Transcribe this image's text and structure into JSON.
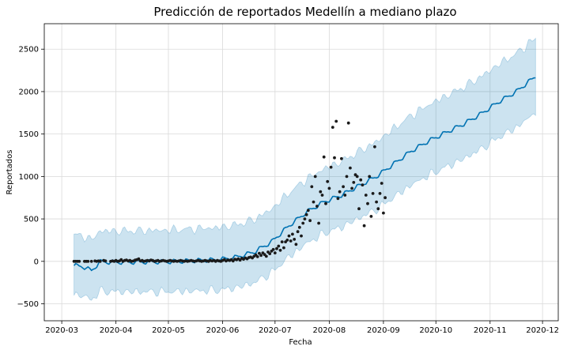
{
  "chart_data": {
    "type": "line",
    "title": "Predicción de reportados Medellín a mediano plazo",
    "xlabel": "Fecha",
    "ylabel": "Reportados",
    "grid": true,
    "legend": "none",
    "x_ticks": [
      "2020-03",
      "2020-04",
      "2020-05",
      "2020-06",
      "2020-07",
      "2020-08",
      "2020-09",
      "2020-10",
      "2020-11",
      "2020-12"
    ],
    "x_tick_days": [
      0,
      31,
      61,
      92,
      122,
      153,
      184,
      214,
      245,
      275
    ],
    "xlim_days": [
      -10,
      284
    ],
    "y_ticks": [
      -500,
      0,
      500,
      1000,
      1500,
      2000,
      2500
    ],
    "ylim": [
      -700,
      2800
    ],
    "colors": {
      "forecast": "#0072b2",
      "band": "#0072b2",
      "observed": "#1a1a1a",
      "grid": "#d9d9d9"
    },
    "forecast_start_day": 7,
    "forecast_end_day": 271,
    "forecast_anchors": [
      [
        7,
        -50
      ],
      [
        12,
        -60
      ],
      [
        17,
        -110
      ],
      [
        22,
        -5
      ],
      [
        30,
        -10
      ],
      [
        60,
        -5
      ],
      [
        90,
        20
      ],
      [
        100,
        50
      ],
      [
        110,
        110
      ],
      [
        120,
        230
      ],
      [
        130,
        420
      ],
      [
        140,
        580
      ],
      [
        150,
        700
      ],
      [
        160,
        780
      ],
      [
        170,
        890
      ],
      [
        180,
        1000
      ],
      [
        190,
        1150
      ],
      [
        200,
        1300
      ],
      [
        210,
        1420
      ],
      [
        220,
        1520
      ],
      [
        230,
        1620
      ],
      [
        240,
        1740
      ],
      [
        250,
        1880
      ],
      [
        260,
        2000
      ],
      [
        271,
        2180
      ]
    ],
    "band_half_anchors": [
      [
        7,
        360
      ],
      [
        150,
        390
      ],
      [
        200,
        420
      ],
      [
        271,
        450
      ]
    ],
    "observed": [
      [
        7,
        0
      ],
      [
        8,
        0
      ],
      [
        9,
        0
      ],
      [
        10,
        0
      ],
      [
        13,
        0
      ],
      [
        14,
        0
      ],
      [
        15,
        0
      ],
      [
        17,
        0
      ],
      [
        19,
        5
      ],
      [
        20,
        0
      ],
      [
        21,
        5
      ],
      [
        22,
        0
      ],
      [
        24,
        10
      ],
      [
        25,
        5
      ],
      [
        28,
        0
      ],
      [
        29,
        5
      ],
      [
        30,
        0
      ],
      [
        31,
        10
      ],
      [
        32,
        0
      ],
      [
        33,
        5
      ],
      [
        34,
        20
      ],
      [
        35,
        0
      ],
      [
        36,
        10
      ],
      [
        37,
        15
      ],
      [
        38,
        5
      ],
      [
        39,
        10
      ],
      [
        40,
        0
      ],
      [
        41,
        5
      ],
      [
        42,
        15
      ],
      [
        43,
        20
      ],
      [
        44,
        30
      ],
      [
        45,
        5
      ],
      [
        46,
        10
      ],
      [
        47,
        0
      ],
      [
        48,
        5
      ],
      [
        49,
        10
      ],
      [
        50,
        5
      ],
      [
        51,
        15
      ],
      [
        52,
        10
      ],
      [
        53,
        0
      ],
      [
        54,
        5
      ],
      [
        55,
        10
      ],
      [
        56,
        0
      ],
      [
        57,
        5
      ],
      [
        58,
        10
      ],
      [
        59,
        5
      ],
      [
        60,
        0
      ],
      [
        61,
        5
      ],
      [
        62,
        10
      ],
      [
        63,
        5
      ],
      [
        64,
        0
      ],
      [
        65,
        5
      ],
      [
        66,
        0
      ],
      [
        67,
        5
      ],
      [
        68,
        10
      ],
      [
        69,
        5
      ],
      [
        70,
        0
      ],
      [
        71,
        5
      ],
      [
        72,
        0
      ],
      [
        73,
        5
      ],
      [
        74,
        10
      ],
      [
        75,
        5
      ],
      [
        76,
        0
      ],
      [
        77,
        5
      ],
      [
        78,
        10
      ],
      [
        79,
        5
      ],
      [
        80,
        0
      ],
      [
        81,
        5
      ],
      [
        82,
        10
      ],
      [
        83,
        5
      ],
      [
        84,
        0
      ],
      [
        85,
        10
      ],
      [
        86,
        5
      ],
      [
        87,
        10
      ],
      [
        88,
        0
      ],
      [
        89,
        10
      ],
      [
        90,
        5
      ],
      [
        91,
        0
      ],
      [
        92,
        10
      ],
      [
        93,
        20
      ],
      [
        94,
        5
      ],
      [
        95,
        15
      ],
      [
        96,
        10
      ],
      [
        97,
        20
      ],
      [
        98,
        5
      ],
      [
        99,
        25
      ],
      [
        100,
        20
      ],
      [
        101,
        30
      ],
      [
        102,
        15
      ],
      [
        103,
        35
      ],
      [
        104,
        25
      ],
      [
        105,
        40
      ],
      [
        106,
        30
      ],
      [
        107,
        45
      ],
      [
        108,
        50
      ],
      [
        109,
        40
      ],
      [
        110,
        60
      ],
      [
        111,
        75
      ],
      [
        112,
        55
      ],
      [
        113,
        95
      ],
      [
        114,
        70
      ],
      [
        115,
        100
      ],
      [
        116,
        80
      ],
      [
        117,
        60
      ],
      [
        118,
        110
      ],
      [
        119,
        90
      ],
      [
        120,
        120
      ],
      [
        121,
        140
      ],
      [
        122,
        100
      ],
      [
        123,
        150
      ],
      [
        124,
        180
      ],
      [
        125,
        130
      ],
      [
        126,
        230
      ],
      [
        127,
        160
      ],
      [
        128,
        230
      ],
      [
        129,
        250
      ],
      [
        130,
        300
      ],
      [
        131,
        240
      ],
      [
        132,
        320
      ],
      [
        133,
        260
      ],
      [
        134,
        200
      ],
      [
        135,
        350
      ],
      [
        136,
        400
      ],
      [
        137,
        300
      ],
      [
        138,
        450
      ],
      [
        139,
        500
      ],
      [
        140,
        550
      ],
      [
        141,
        600
      ],
      [
        142,
        480
      ],
      [
        143,
        880
      ],
      [
        144,
        700
      ],
      [
        145,
        1000
      ],
      [
        146,
        650
      ],
      [
        147,
        450
      ],
      [
        148,
        820
      ],
      [
        149,
        780
      ],
      [
        150,
        1230
      ],
      [
        151,
        680
      ],
      [
        152,
        940
      ],
      [
        153,
        860
      ],
      [
        154,
        1110
      ],
      [
        155,
        1580
      ],
      [
        156,
        1220
      ],
      [
        157,
        1650
      ],
      [
        158,
        740
      ],
      [
        159,
        820
      ],
      [
        160,
        1210
      ],
      [
        161,
        880
      ],
      [
        162,
        780
      ],
      [
        163,
        1000
      ],
      [
        164,
        1630
      ],
      [
        165,
        1100
      ],
      [
        166,
        860
      ],
      [
        167,
        930
      ],
      [
        168,
        1020
      ],
      [
        169,
        1000
      ],
      [
        170,
        620
      ],
      [
        171,
        960
      ],
      [
        172,
        900
      ],
      [
        173,
        420
      ],
      [
        174,
        780
      ],
      [
        175,
        680
      ],
      [
        176,
        1000
      ],
      [
        177,
        530
      ],
      [
        178,
        800
      ],
      [
        179,
        1350
      ],
      [
        180,
        700
      ],
      [
        181,
        620
      ],
      [
        182,
        800
      ],
      [
        183,
        920
      ],
      [
        184,
        570
      ],
      [
        185,
        750
      ]
    ]
  }
}
